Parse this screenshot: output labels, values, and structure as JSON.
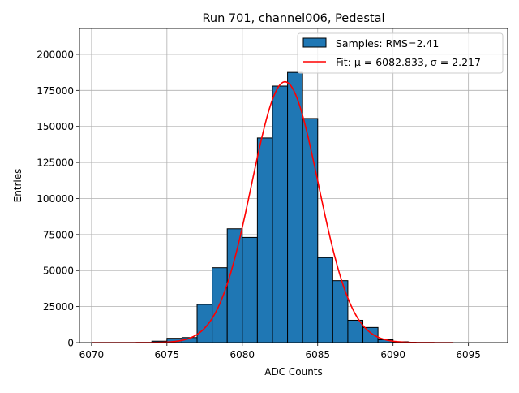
{
  "chart_data": {
    "type": "bar",
    "title": "Run 701, channel006, Pedestal",
    "xlabel": "ADC Counts",
    "ylabel": "Entries",
    "xlim": [
      6069.2,
      6097.6
    ],
    "ylim": [
      0,
      218000
    ],
    "xticks": [
      6070,
      6075,
      6080,
      6085,
      6090,
      6095
    ],
    "xtick_labels": [
      "6070",
      "6075",
      "6080",
      "6085",
      "6090",
      "6095"
    ],
    "yticks": [
      0,
      25000,
      50000,
      75000,
      100000,
      125000,
      150000,
      175000,
      200000
    ],
    "ytick_labels": [
      "0",
      "25000",
      "50000",
      "75000",
      "100000",
      "125000",
      "150000",
      "175000",
      "200000"
    ],
    "grid": true,
    "legend_position": "top-right",
    "histogram": {
      "name": "Samples: RMS=2.41",
      "color": "#1f77b4",
      "edge_color": "#000000",
      "bin_width": 1,
      "bin_left_edges": [
        6074,
        6075,
        6076,
        6077,
        6078,
        6079,
        6080,
        6081,
        6082,
        6083,
        6084,
        6085,
        6086,
        6087,
        6088,
        6089,
        6090
      ],
      "values": [
        1000,
        3000,
        3500,
        26500,
        52000,
        79000,
        73000,
        142000,
        178000,
        187500,
        155500,
        59000,
        43000,
        15500,
        10500,
        2000,
        600
      ]
    },
    "fit": {
      "name": "Fit: μ = 6082.833, σ = 2.217",
      "color": "#ff0000",
      "type": "gaussian",
      "mu": 6082.833,
      "sigma": 2.217,
      "amplitude": 181000,
      "x_range": [
        6070,
        6094
      ]
    }
  }
}
